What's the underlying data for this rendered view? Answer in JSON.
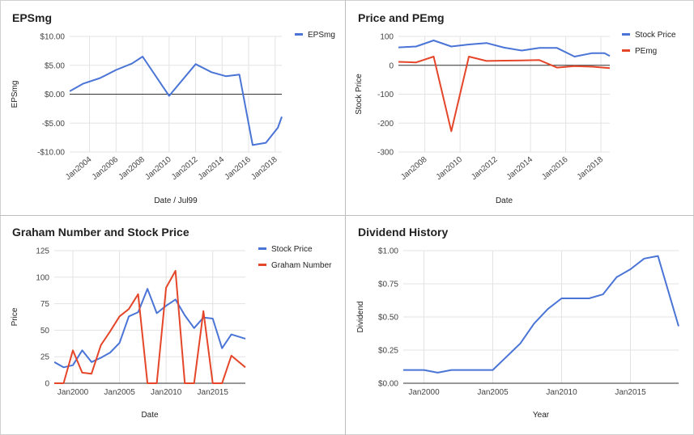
{
  "chart_data": [
    {
      "type": "line",
      "title": "EPSmg",
      "xlabel": "Date / Jul99",
      "ylabel": "EPSmg",
      "x_ticks": [
        "Jan2004",
        "Jan2006",
        "Jan2008",
        "Jan2010",
        "Jan2012",
        "Jan2014",
        "Jan2016",
        "Jan2018"
      ],
      "y_ticks": [
        "$10.00",
        "$5.00",
        "$0.00",
        "-$5.00",
        "-$10.00"
      ],
      "ylim": [
        -10,
        10
      ],
      "xlim": [
        2002.5,
        2018.5
      ],
      "baseline": 0,
      "legend_position": "right",
      "series": [
        {
          "name": "EPSmg",
          "color": "#4a74d6",
          "x": [
            2002.5,
            2003.5,
            2004.8,
            2006,
            2007.2,
            2008,
            2010,
            2012,
            2013.2,
            2014.3,
            2015.3,
            2016.3,
            2017.3,
            2018.2,
            2018.5
          ],
          "y": [
            0.5,
            1.8,
            2.8,
            4.2,
            5.3,
            6.5,
            -0.3,
            5.2,
            3.8,
            3.1,
            3.4,
            -8.8,
            -8.4,
            -5.8,
            -3.9
          ]
        }
      ]
    },
    {
      "type": "line",
      "title": "Price and PEmg",
      "xlabel": "Date",
      "ylabel": "Stock Price",
      "x_ticks": [
        "Jan2008",
        "Jan2010",
        "Jan2012",
        "Jan2014",
        "Jan2016",
        "Jan2018"
      ],
      "y_ticks": [
        "100",
        "0",
        "-100",
        "-200",
        "-300"
      ],
      "ylim": [
        -300,
        100
      ],
      "xlim": [
        2006.5,
        2018.5
      ],
      "baseline": 0,
      "legend_position": "right",
      "series": [
        {
          "name": "Stock Price",
          "color": "#4a74d6",
          "x": [
            2006.5,
            2007.5,
            2008.5,
            2009.5,
            2010.5,
            2011.5,
            2012.5,
            2013.5,
            2014.5,
            2015.5,
            2016.5,
            2017.5,
            2018.2,
            2018.5
          ],
          "y": [
            62,
            65,
            86,
            65,
            72,
            77,
            61,
            51,
            60,
            60,
            30,
            42,
            42,
            32
          ]
        },
        {
          "name": "PEmg",
          "color": "#e5462a",
          "x": [
            2006.5,
            2007.5,
            2008.5,
            2009.5,
            2010.5,
            2011.5,
            2012.5,
            2013.5,
            2014.5,
            2015.5,
            2016.5,
            2017.5,
            2018.5
          ],
          "y": [
            12,
            10,
            30,
            -228,
            30,
            15,
            16,
            17,
            18,
            -8,
            -3,
            -5,
            -10
          ]
        }
      ]
    },
    {
      "type": "line",
      "title": "Graham Number and Stock Price",
      "xlabel": "Date",
      "ylabel": "Price",
      "x_ticks": [
        "Jan2000",
        "Jan2005",
        "Jan2010",
        "Jan2015"
      ],
      "y_ticks": [
        "125",
        "100",
        "75",
        "50",
        "25",
        "0"
      ],
      "ylim": [
        0,
        125
      ],
      "xlim": [
        1998,
        2018.5
      ],
      "legend_position": "right",
      "series": [
        {
          "name": "Stock Price",
          "color": "#4a74d6",
          "x": [
            1998,
            1999,
            2000,
            2001,
            2002,
            2003,
            2004,
            2005,
            2006,
            2007,
            2008,
            2009,
            2010,
            2011,
            2012,
            2013,
            2014,
            2015,
            2016,
            2017,
            2018.5
          ],
          "y": [
            20,
            15,
            17,
            31,
            20,
            24,
            29,
            38,
            63,
            67,
            89,
            66,
            73,
            79,
            64,
            52,
            62,
            61,
            33,
            46,
            42
          ]
        },
        {
          "name": "Graham Number",
          "color": "#e5462a",
          "x": [
            1998,
            1999,
            2000,
            2001,
            2002,
            2003,
            2004,
            2005,
            2006,
            2007,
            2008,
            2009,
            2010,
            2011,
            2012,
            2013,
            2014,
            2015,
            2016,
            2017,
            2018.5
          ],
          "y": [
            0,
            0,
            31,
            10,
            9,
            36,
            49,
            63,
            70,
            84,
            0,
            0,
            90,
            106,
            0,
            0,
            68,
            0,
            0,
            26,
            15
          ]
        }
      ]
    },
    {
      "type": "line",
      "title": "Dividend History",
      "xlabel": "Year",
      "ylabel": "Dividend",
      "x_ticks": [
        "Jan2000",
        "Jan2005",
        "Jan2010",
        "Jan2015"
      ],
      "y_ticks": [
        "$1.00",
        "$0.75",
        "$0.50",
        "$0.25",
        "$0.00"
      ],
      "ylim": [
        0,
        1
      ],
      "xlim": [
        1998.5,
        2018.5
      ],
      "series": [
        {
          "color": "#4a74d6",
          "x": [
            1998.5,
            2000,
            2001,
            2002,
            2003,
            2004,
            2005,
            2006,
            2007,
            2008,
            2009,
            2010,
            2011,
            2012,
            2013,
            2014,
            2015,
            2016,
            2017,
            2018.5
          ],
          "y": [
            0.1,
            0.1,
            0.08,
            0.1,
            0.1,
            0.1,
            0.1,
            0.2,
            0.3,
            0.45,
            0.56,
            0.64,
            0.64,
            0.64,
            0.67,
            0.8,
            0.86,
            0.94,
            0.96,
            0.43
          ]
        }
      ]
    }
  ]
}
